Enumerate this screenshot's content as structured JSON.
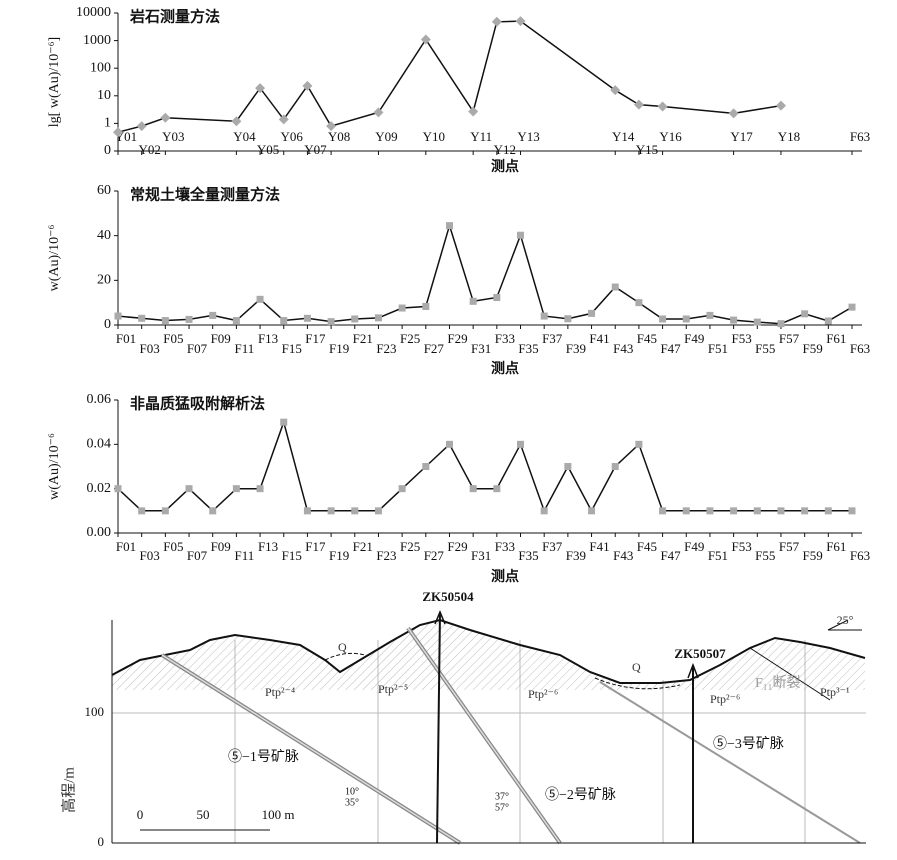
{
  "chart_data": [
    {
      "type": "line",
      "title": "岩石测量方法",
      "xlabel": "测点",
      "ylabel": "lg[ w(Au)/10⁻⁶]",
      "log": true,
      "categories": [
        "Y01",
        "Y02",
        "Y03",
        "Y04",
        "Y05",
        "Y06",
        "Y07",
        "Y08",
        "Y09",
        "Y10",
        "Y11",
        "Y12",
        "Y13",
        "Y14",
        "Y15",
        "Y16",
        "Y17",
        "Y18",
        "F63"
      ],
      "values": [
        0.48,
        0.8,
        1.6,
        1.2,
        19,
        1.4,
        23,
        0.8,
        2.5,
        1100,
        2.7,
        4800,
        5100,
        16,
        4.8,
        4.1,
        2.3,
        4.4,
        null
      ],
      "color": "#aaaaaa",
      "marker": "diamond",
      "ylim": [
        0.1,
        10000
      ],
      "yticks": [
        {
          "value": 0.1,
          "label": "0"
        },
        1,
        10,
        100,
        1000,
        10000
      ]
    },
    {
      "type": "line",
      "title": "常规土壤全量测量方法",
      "xlabel": "测点",
      "ylabel": "w(Au)/10⁻⁶",
      "categories": [
        "F01",
        "F03",
        "F05",
        "F07",
        "F09",
        "F11",
        "F13",
        "F15",
        "F17",
        "F19",
        "F21",
        "F23",
        "F25",
        "F27",
        "F29",
        "F31",
        "F33",
        "F35",
        "F37",
        "F39",
        "F41",
        "F43",
        "F45",
        "F47",
        "F49",
        "F51",
        "F53",
        "F55",
        "F57",
        "F59",
        "F61",
        "F63"
      ],
      "values": [
        4,
        3,
        2,
        2.5,
        4.3,
        2,
        11.5,
        2,
        3,
        1.5,
        2.7,
        3.2,
        7.6,
        8.3,
        44.5,
        10.6,
        12.3,
        40.2,
        4,
        2.8,
        5.2,
        17,
        10,
        2.7,
        2.7,
        4.3,
        2.2,
        1.3,
        0.6,
        5,
        1.8,
        8
      ],
      "color": "#aaaaaa",
      "marker": "square",
      "ylim": [
        0,
        60
      ],
      "yticks": [
        0,
        20,
        40,
        60
      ]
    },
    {
      "type": "line",
      "title": "非晶质猛吸附解析法",
      "xlabel": "测点",
      "ylabel": "w(Au)/10⁻⁶",
      "categories": [
        "F01",
        "F03",
        "F05",
        "F07",
        "F09",
        "F11",
        "F13",
        "F15",
        "F17",
        "F19",
        "F21",
        "F23",
        "F25",
        "F27",
        "F29",
        "F31",
        "F33",
        "F35",
        "F37",
        "F39",
        "F41",
        "F43",
        "F45",
        "F47",
        "F49",
        "F51",
        "F53",
        "F55",
        "F57",
        "F59",
        "F61",
        "F63"
      ],
      "values": [
        0.02,
        0.01,
        0.01,
        0.02,
        0.01,
        0.02,
        0.02,
        0.05,
        0.01,
        0.01,
        0.01,
        0.01,
        0.02,
        0.03,
        0.04,
        0.02,
        0.02,
        0.04,
        0.01,
        0.03,
        0.01,
        0.03,
        0.04,
        0.01,
        0.01,
        0.01,
        0.01,
        0.01,
        0.01,
        0.01,
        0.01,
        0.01
      ],
      "color": "#aaaaaa",
      "marker": "square",
      "ylim": [
        0,
        0.06
      ],
      "yticks": [
        {
          "value": 0,
          "label": "0.00"
        },
        {
          "value": 0.02,
          "label": "0.02"
        },
        {
          "value": 0.04,
          "label": "0.04"
        },
        {
          "value": 0.06,
          "label": "0.06"
        }
      ]
    }
  ],
  "section": {
    "ylabel": "高程/m",
    "yticks": [
      0,
      100
    ],
    "drills": [
      "ZK50504",
      "ZK50507"
    ],
    "dip": "25°",
    "quaternary": [
      "Q",
      "Q"
    ],
    "units": [
      "Ptp²⁻⁴",
      "Ptp²⁻⁵",
      "Ptp²⁻⁶",
      "Ptp²⁻⁶",
      "Ptp³⁻¹"
    ],
    "fault": "F₁₁断裂",
    "veins": [
      "⑤−1号矿脉",
      "⑤−2号矿脉",
      "⑤−3号矿脉"
    ],
    "angles": [
      "10°",
      "35°",
      "37°",
      "57°"
    ],
    "scale": [
      "0",
      "50",
      "100 m"
    ]
  }
}
